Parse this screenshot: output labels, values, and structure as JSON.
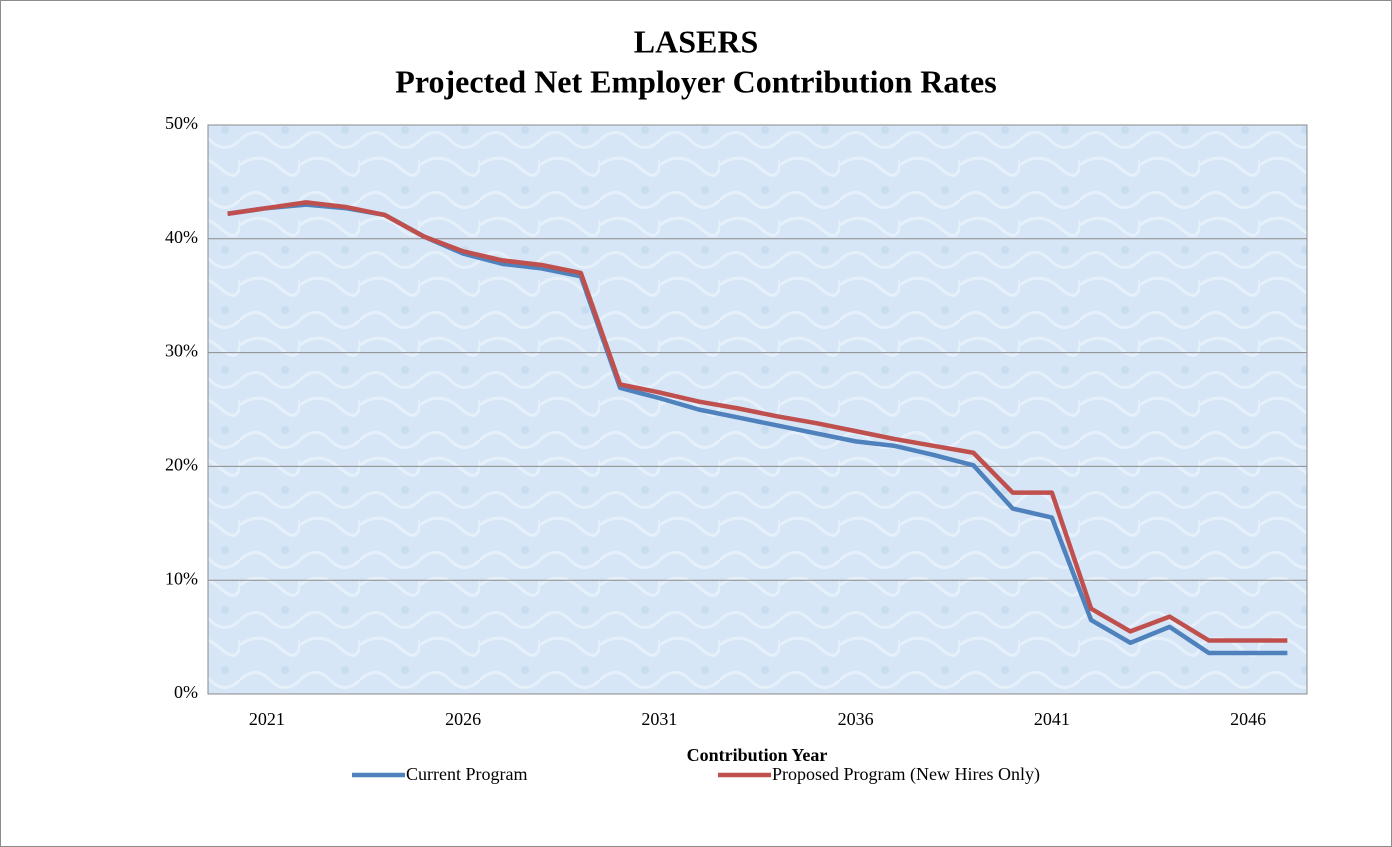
{
  "chart_data": {
    "type": "line",
    "title": "LASERS",
    "subtitle": "Projected Net Employer Contribution Rates",
    "x_label": "Contribution Year",
    "x": [
      2020,
      2021,
      2022,
      2023,
      2024,
      2025,
      2026,
      2027,
      2028,
      2029,
      2030,
      2031,
      2032,
      2033,
      2034,
      2035,
      2036,
      2037,
      2038,
      2039,
      2040,
      2041,
      2042,
      2043,
      2044,
      2045,
      2046,
      2047
    ],
    "xlim": [
      2019.5,
      2047.5
    ],
    "xticks": [
      2021,
      2026,
      2031,
      2036,
      2041,
      2046
    ],
    "ylim": [
      0,
      50
    ],
    "yticks": [
      {
        "value": 0,
        "label": "0%"
      },
      {
        "value": 10,
        "label": "10%"
      },
      {
        "value": 20,
        "label": "20%"
      },
      {
        "value": 30,
        "label": "30%"
      },
      {
        "value": 40,
        "label": "40%"
      },
      {
        "value": 50,
        "label": "50%"
      }
    ],
    "grid": true,
    "legend": "bottom",
    "series": [
      {
        "name": "Current Program",
        "color": "#4f81bd",
        "values": [
          42.2,
          42.7,
          43.0,
          42.7,
          42.1,
          40.2,
          38.7,
          37.8,
          37.4,
          36.7,
          26.9,
          26.0,
          25.0,
          24.3,
          23.6,
          22.9,
          22.2,
          21.8,
          21.0,
          20.1,
          16.3,
          15.5,
          6.5,
          4.5,
          5.9,
          3.6,
          3.6,
          3.6
        ]
      },
      {
        "name": "Proposed Program (New Hires Only)",
        "color": "#c0504d",
        "values": [
          42.2,
          42.7,
          43.2,
          42.8,
          42.1,
          40.2,
          38.9,
          38.1,
          37.7,
          37.0,
          27.2,
          26.5,
          25.7,
          25.1,
          24.4,
          23.8,
          23.1,
          22.4,
          21.8,
          21.2,
          17.7,
          17.7,
          7.5,
          5.5,
          6.8,
          4.7,
          4.7,
          4.7
        ]
      }
    ]
  }
}
